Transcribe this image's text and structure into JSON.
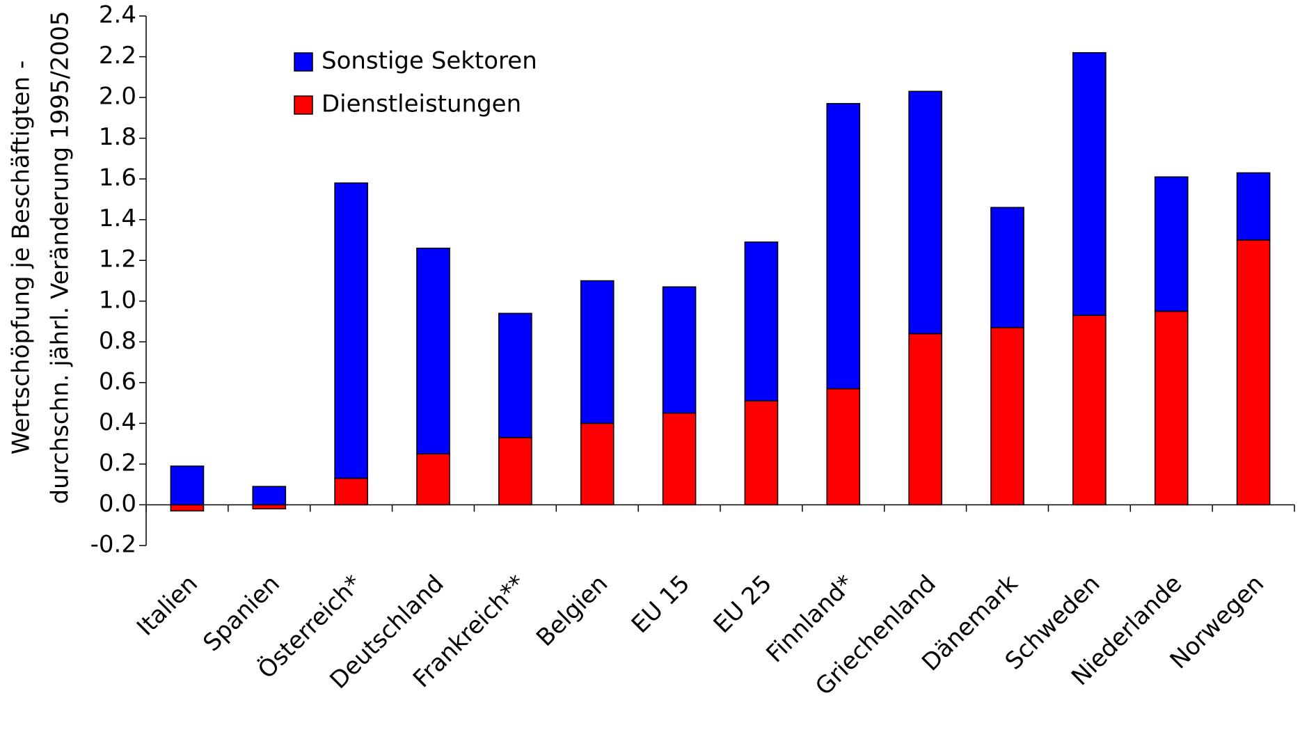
{
  "chart_data": {
    "type": "stacked_bar",
    "ylabel": [
      "Wertschöpfung je Beschäftigten -",
      "durchschn. jährl. Veränderung 1995/2005"
    ],
    "categories": [
      "Italien",
      "Spanien",
      "Österreich*",
      "Deutschland",
      "Frankreich**",
      "Belgien",
      "EU 15",
      "EU 25",
      "Finnland*",
      "Griechenland",
      "Dänemark",
      "Schweden",
      "Niederlande",
      "Norwegen"
    ],
    "series": [
      {
        "name": "Dienstleistungen",
        "color": "#ff0000",
        "values": [
          -0.03,
          -0.02,
          0.13,
          0.25,
          0.33,
          0.4,
          0.45,
          0.51,
          0.57,
          0.84,
          0.87,
          0.93,
          0.95,
          1.3
        ]
      },
      {
        "name": "Sonstige Sektoren",
        "color": "#0000ff",
        "values": [
          0.19,
          0.09,
          1.45,
          1.01,
          0.61,
          0.7,
          0.62,
          0.78,
          1.4,
          1.19,
          0.59,
          1.29,
          0.66,
          0.33
        ]
      }
    ],
    "ylim": [
      -0.2,
      2.4
    ],
    "yticks": [
      -0.2,
      {
        "value": 0,
        "label": "0.0"
      },
      0.2,
      0.4,
      0.6,
      0.8,
      {
        "value": 1,
        "label": "1.0"
      },
      1.2,
      1.4,
      1.6,
      1.8,
      {
        "value": 2,
        "label": "2.0"
      },
      2.2,
      2.4
    ],
    "grid": false
  }
}
